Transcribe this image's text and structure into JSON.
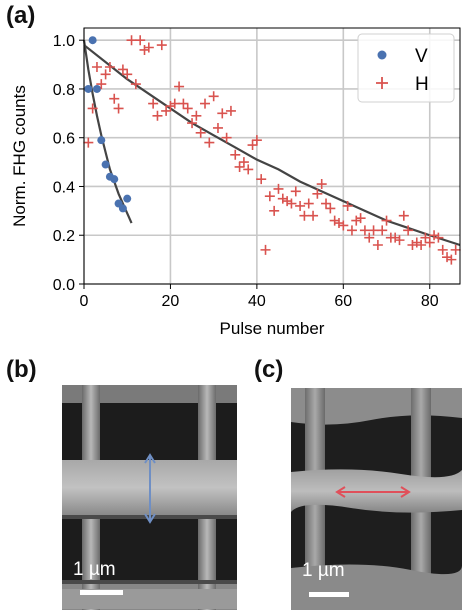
{
  "panels": {
    "a": "(a)",
    "b": "(b)",
    "c": "(c)"
  },
  "chart_data": {
    "type": "scatter",
    "xlabel": "Pulse number",
    "ylabel": "Norm. FHG counts",
    "xlim": [
      0,
      87
    ],
    "ylim": [
      0,
      1.05
    ],
    "xticks": [
      "0",
      "20",
      "40",
      "60",
      "80"
    ],
    "yticks": [
      "0.0",
      "0.2",
      "0.4",
      "0.6",
      "0.8",
      "1.0"
    ],
    "grid": true,
    "legend": "top-right",
    "series": [
      {
        "name": "V",
        "marker": "circle",
        "color": "#4a72b0",
        "x": [
          1,
          2,
          3,
          4,
          5,
          6,
          7,
          8,
          9,
          10
        ],
        "y": [
          0.8,
          1.0,
          0.8,
          0.59,
          0.49,
          0.44,
          0.43,
          0.33,
          0.31,
          0.35
        ],
        "fit_x": [
          0,
          1,
          2,
          3,
          4,
          5,
          6,
          7,
          8,
          9,
          10,
          11
        ],
        "fit_y": [
          1.0,
          0.88,
          0.78,
          0.69,
          0.61,
          0.54,
          0.47,
          0.42,
          0.37,
          0.33,
          0.29,
          0.25
        ]
      },
      {
        "name": "H",
        "marker": "plus",
        "color": "#d9534f",
        "x": [
          1,
          2,
          3,
          4,
          5,
          6,
          7,
          8,
          9,
          10,
          11,
          12,
          13,
          14,
          15,
          16,
          17,
          18,
          19,
          20,
          21,
          22,
          23,
          24,
          25,
          26,
          27,
          28,
          29,
          30,
          31,
          32,
          33,
          34,
          35,
          36,
          37,
          38,
          39,
          40,
          41,
          42,
          43,
          44,
          45,
          46,
          47,
          48,
          49,
          50,
          51,
          52,
          53,
          54,
          55,
          56,
          57,
          58,
          59,
          60,
          61,
          62,
          63,
          64,
          65,
          66,
          67,
          68,
          69,
          70,
          71,
          72,
          73,
          74,
          75,
          76,
          77,
          78,
          79,
          80,
          81,
          82,
          83,
          84,
          85,
          86
        ],
        "y": [
          0.58,
          0.72,
          0.89,
          0.82,
          0.86,
          0.89,
          0.76,
          0.72,
          0.88,
          0.86,
          1.0,
          0.82,
          1.0,
          0.96,
          0.97,
          0.74,
          0.69,
          0.98,
          0.71,
          0.73,
          0.74,
          0.81,
          0.74,
          0.72,
          0.66,
          0.69,
          0.62,
          0.74,
          0.58,
          0.77,
          0.64,
          0.7,
          0.6,
          0.71,
          0.53,
          0.48,
          0.5,
          0.47,
          0.57,
          0.59,
          0.43,
          0.14,
          0.36,
          0.3,
          0.39,
          0.35,
          0.34,
          0.33,
          0.38,
          0.32,
          0.28,
          0.33,
          0.28,
          0.37,
          0.41,
          0.33,
          0.31,
          0.26,
          0.25,
          0.24,
          0.32,
          0.22,
          0.26,
          0.27,
          0.22,
          0.19,
          0.22,
          0.16,
          0.22,
          0.26,
          0.19,
          0.19,
          0.18,
          0.28,
          0.22,
          0.16,
          0.17,
          0.16,
          0.19,
          0.17,
          0.2,
          0.19,
          0.14,
          0.11,
          0.1,
          0.14
        ],
        "fit_x": [
          0,
          5,
          10,
          15,
          20,
          25,
          30,
          35,
          40,
          45,
          50,
          55,
          60,
          65,
          70,
          75,
          80,
          87
        ],
        "fit_y": [
          0.98,
          0.91,
          0.84,
          0.78,
          0.72,
          0.66,
          0.61,
          0.56,
          0.51,
          0.47,
          0.42,
          0.38,
          0.34,
          0.3,
          0.26,
          0.23,
          0.2,
          0.16
        ]
      }
    ]
  },
  "images": {
    "b": {
      "scale_label": "1 µm",
      "arrow": "vertical"
    },
    "c": {
      "scale_label": "1 µm",
      "arrow": "horizontal"
    }
  }
}
